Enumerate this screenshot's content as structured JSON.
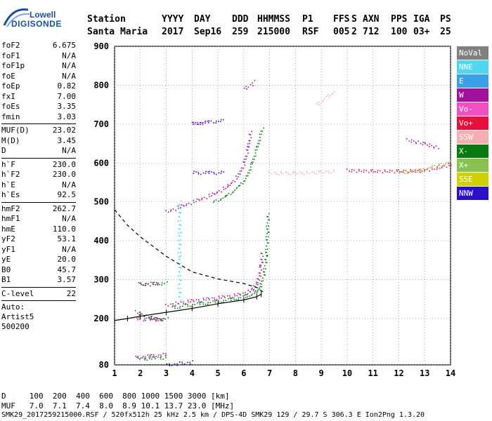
{
  "header": {
    "brand_line1": "Lowell",
    "brand_line2": "DIGISONDE",
    "row1": [
      "Station",
      "YYYY",
      "DAY",
      "DDD",
      "HHMMSS",
      "P1",
      "FFS",
      "S",
      "AXN",
      "PPS",
      "IGA",
      "PS"
    ],
    "row2": [
      "Santa Maria",
      "2017",
      "Sep16",
      "259",
      "215000",
      "RSF",
      "005",
      "2",
      "712",
      "100",
      "03+",
      "25"
    ]
  },
  "params": [
    [
      {
        "label": "foF2",
        "value": "6.675"
      },
      {
        "label": "foF1",
        "value": "N/A"
      },
      {
        "label": "foF1p",
        "value": "N/A"
      },
      {
        "label": "foE",
        "value": "N/A"
      },
      {
        "label": "foEp",
        "value": "0.82"
      },
      {
        "label": "fxI",
        "value": "7.00"
      },
      {
        "label": "foEs",
        "value": "3.35"
      },
      {
        "label": "fmin",
        "value": "3.03"
      }
    ],
    [
      {
        "label": "MUF(D)",
        "value": "23.02"
      },
      {
        "label": "M(D)",
        "value": "3.45"
      },
      {
        "label": "D",
        "value": "N/A"
      }
    ],
    [
      {
        "label": "h`F",
        "value": "230.0"
      },
      {
        "label": "h`F2",
        "value": "230.0"
      },
      {
        "label": "h`E",
        "value": "N/A"
      },
      {
        "label": "h`Es",
        "value": "92.5"
      }
    ],
    [
      {
        "label": "hmF2",
        "value": "262.7"
      },
      {
        "label": "hmF1",
        "value": "N/A"
      },
      {
        "label": "hmE",
        "value": "110.0"
      },
      {
        "label": "yF2",
        "value": "53.1"
      },
      {
        "label": "yF1",
        "value": "N/A"
      },
      {
        "label": "yE",
        "value": "20.0"
      },
      {
        "label": "B0",
        "value": "45.7"
      },
      {
        "label": "B1",
        "value": "3.57"
      }
    ],
    [
      {
        "label": "C-level",
        "value": "22"
      }
    ]
  ],
  "autoscaling": {
    "line1": "Auto:",
    "line2": "Artist5",
    "line3": "500200"
  },
  "legend": [
    {
      "label": "NoVal",
      "color": "#808080"
    },
    {
      "label": "NNE",
      "color": "#4fd6f0"
    },
    {
      "label": "E",
      "color": "#3aa0e8"
    },
    {
      "label": "W",
      "color": "#a0109a"
    },
    {
      "label": "Vo-",
      "color": "#f050c0"
    },
    {
      "label": "Vo+",
      "color": "#e8103a"
    },
    {
      "label": "SSW",
      "color": "#f4b0b0"
    },
    {
      "label": "X-",
      "color": "#0a7a10"
    },
    {
      "label": "X+",
      "color": "#8ac050"
    },
    {
      "label": "SSE",
      "color": "#d0d000"
    },
    {
      "label": "NNW",
      "color": "#2a10c8"
    }
  ],
  "footer": {
    "dist_row": "D     100  200  400  600  800 1000 1500 3000 [km]",
    "muf_row": "MUF   7.0  7.1  7.4  8.0  8.9 10.1 13.7 23.0 [MHz]",
    "info_row": "SMK29_2017259215000.RSF / 520fx512h 25 kHz 2.5 km / DPS-4D SMK29 129 / 29.7 S 306.3 E Ion2Png 1.3.20"
  },
  "chart_data": {
    "type": "scatter",
    "title": "",
    "xlabel": "",
    "ylabel": "",
    "xlim": [
      1,
      14
    ],
    "ylim": [
      80,
      900
    ],
    "x_ticks": [
      1,
      2,
      3,
      4,
      5,
      6,
      7,
      8,
      9,
      10,
      11,
      12,
      13,
      14
    ],
    "y_ticks": [
      80,
      200,
      300,
      400,
      500,
      600,
      700,
      800,
      900
    ],
    "grid": true,
    "legend_position": "right",
    "series": [
      {
        "color": "#a0109a",
        "points": [
          [
            3.0,
            234
          ],
          [
            3.4,
            240
          ],
          [
            4.0,
            246
          ],
          [
            4.6,
            251
          ],
          [
            5.2,
            256
          ],
          [
            5.8,
            262
          ],
          [
            6.2,
            270
          ],
          [
            6.4,
            282
          ],
          [
            6.55,
            300
          ],
          [
            6.65,
            335
          ],
          [
            6.7,
            370
          ]
        ]
      },
      {
        "color": "#0a7a10",
        "points": [
          [
            3.2,
            228
          ],
          [
            3.7,
            234
          ],
          [
            4.3,
            239
          ],
          [
            4.9,
            244
          ],
          [
            5.5,
            250
          ],
          [
            6.0,
            257
          ],
          [
            6.4,
            266
          ],
          [
            6.6,
            280
          ],
          [
            6.75,
            310
          ],
          [
            6.85,
            360
          ],
          [
            6.9,
            420
          ],
          [
            6.92,
            470
          ]
        ]
      },
      {
        "color": "#a0109a",
        "points": [
          [
            3.0,
            475
          ],
          [
            3.6,
            490
          ],
          [
            4.2,
            505
          ],
          [
            4.8,
            520
          ],
          [
            5.4,
            542
          ],
          [
            5.8,
            570
          ],
          [
            6.0,
            600
          ],
          [
            6.15,
            640
          ],
          [
            6.25,
            680
          ]
        ]
      },
      {
        "color": "#0a7a10",
        "points": [
          [
            4.8,
            500
          ],
          [
            5.3,
            515
          ],
          [
            5.8,
            540
          ],
          [
            6.1,
            565
          ],
          [
            6.3,
            600
          ],
          [
            6.5,
            640
          ],
          [
            6.7,
            690
          ]
        ]
      },
      {
        "color": "#a0109a",
        "points": [
          [
            1.8,
            218
          ],
          [
            2.4,
            202
          ],
          [
            2.9,
            198
          ],
          [
            1.8,
            200
          ]
        ]
      },
      {
        "color": "#0a7a10",
        "points": [
          [
            1.9,
            214
          ],
          [
            2.5,
            200
          ],
          [
            3.0,
            200
          ]
        ]
      },
      {
        "color": "#a0109a",
        "points": [
          [
            1.8,
            100
          ],
          [
            2.4,
            104
          ],
          [
            3.0,
            108
          ]
        ]
      },
      {
        "color": "#0a7a10",
        "points": [
          [
            1.9,
            97
          ],
          [
            2.5,
            98
          ],
          [
            3.0,
            101
          ]
        ]
      },
      {
        "color": "#0a7a10",
        "points": [
          [
            1.9,
            290
          ],
          [
            2.5,
            291
          ],
          [
            3.0,
            292
          ]
        ]
      },
      {
        "color": "#a0109a",
        "points": [
          [
            2.0,
            288
          ],
          [
            2.7,
            290
          ]
        ]
      },
      {
        "color": "#2a10c8",
        "points": [
          [
            4.0,
            702
          ],
          [
            4.6,
            706
          ],
          [
            5.2,
            710
          ]
        ]
      },
      {
        "color": "#a0109a",
        "points": [
          [
            4.0,
            702
          ],
          [
            4.5,
            705
          ]
        ]
      },
      {
        "color": "#2a10c8",
        "points": [
          [
            4.0,
            576
          ],
          [
            4.6,
            576
          ],
          [
            5.2,
            576
          ]
        ]
      },
      {
        "color": "#a0109a",
        "points": [
          [
            6.0,
            790
          ],
          [
            6.4,
            810
          ]
        ]
      },
      {
        "color": "#f4b0b0",
        "points": [
          [
            7.0,
            575
          ],
          [
            8.0,
            575
          ],
          [
            9.0,
            577
          ],
          [
            9.5,
            580
          ]
        ]
      },
      {
        "color": "#f4b0b0",
        "points": [
          [
            8.8,
            750
          ],
          [
            9.5,
            785
          ]
        ]
      },
      {
        "color": "#e8103a",
        "points": [
          [
            10.0,
            582
          ],
          [
            11.0,
            580
          ],
          [
            12.0,
            580
          ],
          [
            12.8,
            581
          ],
          [
            13.5,
            588
          ],
          [
            14.0,
            598
          ]
        ]
      },
      {
        "color": "#8ac050",
        "points": [
          [
            12.0,
            575
          ],
          [
            12.8,
            582
          ],
          [
            13.5,
            595
          ],
          [
            14.0,
            605
          ]
        ]
      },
      {
        "color": "#a0109a",
        "points": [
          [
            12.3,
            660
          ],
          [
            13.0,
            650
          ],
          [
            13.5,
            640
          ]
        ]
      },
      {
        "color": "#4fd6f0",
        "points": [
          [
            3.5,
            500
          ],
          [
            3.5,
            420
          ],
          [
            3.5,
            360
          ],
          [
            3.5,
            250
          ]
        ]
      },
      {
        "color": "#2a10c8",
        "points": [
          [
            3.0,
            80
          ],
          [
            3.5,
            85
          ],
          [
            4.0,
            88
          ]
        ]
      }
    ],
    "model_profile": {
      "style": "dashed",
      "points": [
        [
          1.0,
          480
        ],
        [
          1.5,
          440
        ],
        [
          2.0,
          410
        ],
        [
          3.0,
          360
        ],
        [
          4.0,
          320
        ],
        [
          5.0,
          302
        ],
        [
          6.0,
          290
        ],
        [
          6.5,
          280
        ],
        [
          6.75,
          268
        ],
        [
          6.675,
          262.7
        ]
      ]
    },
    "trace_profile": {
      "style": "solid-ticked",
      "points": [
        [
          1.0,
          195
        ],
        [
          1.5,
          200
        ],
        [
          2.0,
          206
        ],
        [
          3.0,
          216
        ],
        [
          4.0,
          226
        ],
        [
          5.0,
          238
        ],
        [
          6.0,
          248
        ],
        [
          6.5,
          256
        ],
        [
          6.675,
          262.7
        ]
      ]
    }
  }
}
